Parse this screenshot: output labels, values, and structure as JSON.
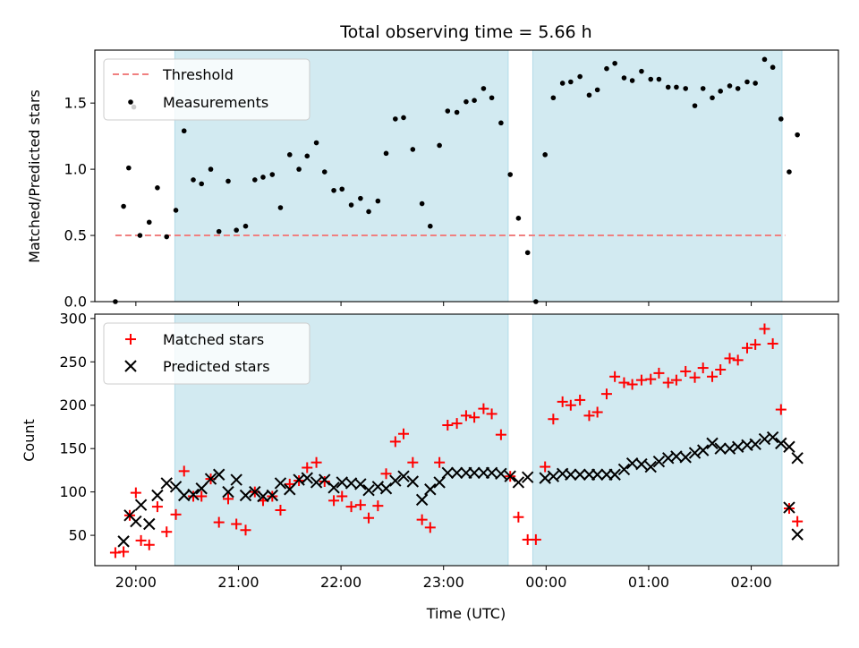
{
  "title": "Total observing time = 5.66 h",
  "colors": {
    "shade": "#add8e6",
    "threshold": "#f08080",
    "matched": "#ff0000",
    "predicted": "#000000",
    "measure": "#000000"
  },
  "xaxis": {
    "label": "Time (UTC)",
    "range_hours": [
      19.6,
      26.85
    ],
    "ticks": [
      {
        "h": 20,
        "label": "20:00"
      },
      {
        "h": 21,
        "label": "21:00"
      },
      {
        "h": 22,
        "label": "22:00"
      },
      {
        "h": 23,
        "label": "23:00"
      },
      {
        "h": 24,
        "label": "00:00"
      },
      {
        "h": 25,
        "label": "01:00"
      },
      {
        "h": 26,
        "label": "02:00"
      }
    ]
  },
  "shaded_intervals_hours": [
    [
      20.38,
      23.63
    ],
    [
      23.87,
      26.3
    ]
  ],
  "chart_data": [
    {
      "type": "scatter",
      "ylabel": "Matched/Predicted stars",
      "ylim": [
        0,
        1.9
      ],
      "yticks": [
        0,
        0.5,
        1.0,
        1.5
      ],
      "ytick_labels": [
        "0.0",
        "0.5",
        "1.0",
        "1.5"
      ],
      "legend": [
        "Threshold",
        "Measurements"
      ],
      "legend_position": "top-left",
      "threshold": {
        "name": "Threshold",
        "y": 0.5,
        "x_range": [
          19.8,
          26.33
        ]
      },
      "series": [
        {
          "name": "Measurements",
          "points": [
            [
              19.8,
              0.0
            ],
            [
              19.88,
              0.72
            ],
            [
              19.93,
              1.01
            ],
            [
              19.98,
              1.47
            ],
            [
              20.04,
              0.5
            ],
            [
              20.13,
              0.6
            ],
            [
              20.21,
              0.86
            ],
            [
              20.3,
              0.49
            ],
            [
              20.39,
              0.69
            ],
            [
              20.47,
              1.29
            ],
            [
              20.56,
              0.92
            ],
            [
              20.64,
              0.89
            ],
            [
              20.73,
              1.0
            ],
            [
              20.81,
              0.53
            ],
            [
              20.9,
              0.91
            ],
            [
              20.98,
              0.54
            ],
            [
              21.07,
              0.57
            ],
            [
              21.16,
              0.92
            ],
            [
              21.24,
              0.94
            ],
            [
              21.33,
              0.96
            ],
            [
              21.41,
              0.71
            ],
            [
              21.5,
              1.11
            ],
            [
              21.59,
              1.0
            ],
            [
              21.67,
              1.1
            ],
            [
              21.76,
              1.2
            ],
            [
              21.84,
              0.98
            ],
            [
              21.93,
              0.84
            ],
            [
              22.01,
              0.85
            ],
            [
              22.1,
              0.73
            ],
            [
              22.19,
              0.78
            ],
            [
              22.27,
              0.68
            ],
            [
              22.36,
              0.76
            ],
            [
              22.44,
              1.12
            ],
            [
              22.53,
              1.38
            ],
            [
              22.61,
              1.39
            ],
            [
              22.7,
              1.15
            ],
            [
              22.79,
              0.74
            ],
            [
              22.87,
              0.57
            ],
            [
              22.96,
              1.18
            ],
            [
              23.04,
              1.44
            ],
            [
              23.13,
              1.43
            ],
            [
              23.22,
              1.51
            ],
            [
              23.3,
              1.52
            ],
            [
              23.39,
              1.61
            ],
            [
              23.47,
              1.54
            ],
            [
              23.56,
              1.35
            ],
            [
              23.65,
              0.96
            ],
            [
              23.73,
              0.63
            ],
            [
              23.82,
              0.37
            ],
            [
              23.9,
              0.0
            ],
            [
              23.99,
              1.11
            ],
            [
              24.07,
              1.54
            ],
            [
              24.16,
              1.65
            ],
            [
              24.24,
              1.66
            ],
            [
              24.33,
              1.7
            ],
            [
              24.42,
              1.56
            ],
            [
              24.5,
              1.6
            ],
            [
              24.59,
              1.76
            ],
            [
              24.67,
              1.8
            ],
            [
              24.76,
              1.69
            ],
            [
              24.84,
              1.67
            ],
            [
              24.93,
              1.74
            ],
            [
              25.02,
              1.68
            ],
            [
              25.1,
              1.68
            ],
            [
              25.19,
              1.62
            ],
            [
              25.27,
              1.62
            ],
            [
              25.36,
              1.61
            ],
            [
              25.45,
              1.48
            ],
            [
              25.53,
              1.61
            ],
            [
              25.62,
              1.54
            ],
            [
              25.7,
              1.59
            ],
            [
              25.79,
              1.63
            ],
            [
              25.87,
              1.61
            ],
            [
              25.96,
              1.66
            ],
            [
              26.04,
              1.65
            ],
            [
              26.13,
              1.83
            ],
            [
              26.21,
              1.77
            ],
            [
              26.29,
              1.38
            ],
            [
              26.37,
              0.98
            ],
            [
              26.45,
              1.26
            ]
          ]
        }
      ]
    },
    {
      "type": "scatter",
      "ylabel": "Count",
      "ylim": [
        15,
        305
      ],
      "yticks": [
        50,
        100,
        150,
        200,
        250,
        300
      ],
      "ytick_labels": [
        "50",
        "100",
        "150",
        "200",
        "250",
        "300"
      ],
      "legend": [
        "Matched stars",
        "Predicted stars"
      ],
      "legend_position": "top-left",
      "series": [
        {
          "name": "Matched stars",
          "marker": "plus",
          "points": [
            [
              19.8,
              30
            ],
            [
              19.88,
              31
            ],
            [
              19.94,
              73
            ],
            [
              20.0,
              99
            ],
            [
              20.05,
              44
            ],
            [
              20.13,
              39
            ],
            [
              20.21,
              83
            ],
            [
              20.3,
              54
            ],
            [
              20.39,
              74
            ],
            [
              20.47,
              124
            ],
            [
              20.56,
              95
            ],
            [
              20.64,
              95
            ],
            [
              20.73,
              115
            ],
            [
              20.81,
              65
            ],
            [
              20.9,
              92
            ],
            [
              20.98,
              63
            ],
            [
              21.07,
              56
            ],
            [
              21.16,
              100
            ],
            [
              21.24,
              90
            ],
            [
              21.33,
              95
            ],
            [
              21.41,
              79
            ],
            [
              21.5,
              109
            ],
            [
              21.59,
              113
            ],
            [
              21.67,
              128
            ],
            [
              21.76,
              134
            ],
            [
              21.84,
              112
            ],
            [
              21.93,
              90
            ],
            [
              22.01,
              95
            ],
            [
              22.1,
              83
            ],
            [
              22.19,
              85
            ],
            [
              22.27,
              70
            ],
            [
              22.36,
              84
            ],
            [
              22.44,
              121
            ],
            [
              22.53,
              158
            ],
            [
              22.61,
              167
            ],
            [
              22.7,
              134
            ],
            [
              22.79,
              68
            ],
            [
              22.87,
              59
            ],
            [
              22.96,
              134
            ],
            [
              23.04,
              177
            ],
            [
              23.13,
              179
            ],
            [
              23.22,
              188
            ],
            [
              23.3,
              186
            ],
            [
              23.39,
              196
            ],
            [
              23.47,
              190
            ],
            [
              23.56,
              166
            ],
            [
              23.65,
              118
            ],
            [
              23.73,
              71
            ],
            [
              23.82,
              45
            ],
            [
              23.9,
              45
            ],
            [
              23.99,
              129
            ],
            [
              24.07,
              184
            ],
            [
              24.16,
              204
            ],
            [
              24.24,
              200
            ],
            [
              24.33,
              206
            ],
            [
              24.42,
              188
            ],
            [
              24.5,
              192
            ],
            [
              24.59,
              213
            ],
            [
              24.67,
              233
            ],
            [
              24.76,
              226
            ],
            [
              24.84,
              224
            ],
            [
              24.93,
              229
            ],
            [
              25.02,
              230
            ],
            [
              25.1,
              237
            ],
            [
              25.19,
              226
            ],
            [
              25.27,
              229
            ],
            [
              25.36,
              239
            ],
            [
              25.45,
              232
            ],
            [
              25.53,
              243
            ],
            [
              25.62,
              233
            ],
            [
              25.7,
              241
            ],
            [
              25.79,
              254
            ],
            [
              25.87,
              252
            ],
            [
              25.96,
              266
            ],
            [
              26.04,
              270
            ],
            [
              26.13,
              288
            ],
            [
              26.21,
              271
            ],
            [
              26.29,
              195
            ],
            [
              26.37,
              81
            ],
            [
              26.45,
              66
            ]
          ]
        },
        {
          "name": "Predicted stars",
          "marker": "x",
          "points": [
            [
              19.88,
              43
            ],
            [
              19.94,
              73
            ],
            [
              20.0,
              66
            ],
            [
              20.05,
              85
            ],
            [
              20.13,
              63
            ],
            [
              20.21,
              96
            ],
            [
              20.3,
              110
            ],
            [
              20.39,
              106
            ],
            [
              20.47,
              96
            ],
            [
              20.56,
              97
            ],
            [
              20.64,
              104
            ],
            [
              20.73,
              115
            ],
            [
              20.81,
              120
            ],
            [
              20.9,
              100
            ],
            [
              20.98,
              114
            ],
            [
              21.07,
              96
            ],
            [
              21.16,
              100
            ],
            [
              21.24,
              95
            ],
            [
              21.33,
              96
            ],
            [
              21.41,
              110
            ],
            [
              21.5,
              103
            ],
            [
              21.59,
              114
            ],
            [
              21.67,
              116
            ],
            [
              21.76,
              111
            ],
            [
              21.84,
              114
            ],
            [
              21.93,
              105
            ],
            [
              22.01,
              111
            ],
            [
              22.1,
              110
            ],
            [
              22.19,
              109
            ],
            [
              22.27,
              102
            ],
            [
              22.36,
              106
            ],
            [
              22.44,
              104
            ],
            [
              22.53,
              113
            ],
            [
              22.61,
              118
            ],
            [
              22.7,
              112
            ],
            [
              22.79,
              91
            ],
            [
              22.87,
              103
            ],
            [
              22.96,
              111
            ],
            [
              23.04,
              122
            ],
            [
              23.13,
              122
            ],
            [
              23.22,
              122
            ],
            [
              23.3,
              122
            ],
            [
              23.39,
              122
            ],
            [
              23.47,
              122
            ],
            [
              23.56,
              121
            ],
            [
              23.65,
              118
            ],
            [
              23.73,
              111
            ],
            [
              23.82,
              117
            ],
            [
              23.99,
              116
            ],
            [
              24.07,
              118
            ],
            [
              24.16,
              121
            ],
            [
              24.24,
              120
            ],
            [
              24.33,
              120
            ],
            [
              24.42,
              120
            ],
            [
              24.5,
              120
            ],
            [
              24.59,
              120
            ],
            [
              24.67,
              120
            ],
            [
              24.76,
              126
            ],
            [
              24.84,
              133
            ],
            [
              24.93,
              132
            ],
            [
              25.02,
              129
            ],
            [
              25.1,
              135
            ],
            [
              25.19,
              139
            ],
            [
              25.27,
              141
            ],
            [
              25.36,
              140
            ],
            [
              25.45,
              145
            ],
            [
              25.53,
              148
            ],
            [
              25.62,
              156
            ],
            [
              25.7,
              150
            ],
            [
              25.79,
              150
            ],
            [
              25.87,
              152
            ],
            [
              25.96,
              154
            ],
            [
              26.04,
              155
            ],
            [
              26.13,
              161
            ],
            [
              26.21,
              163
            ],
            [
              26.29,
              156
            ],
            [
              26.37,
              152
            ],
            [
              26.45,
              139
            ],
            [
              26.37,
              82
            ],
            [
              26.45,
              51
            ]
          ]
        }
      ]
    }
  ]
}
